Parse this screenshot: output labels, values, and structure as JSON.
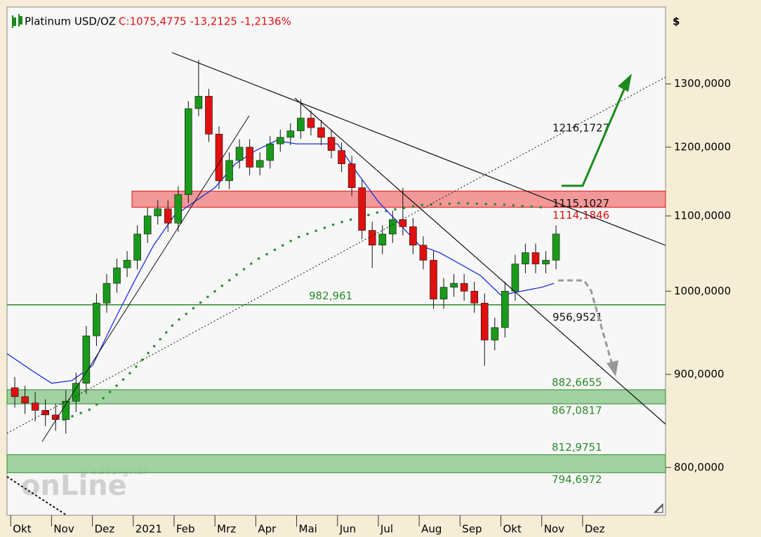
{
  "chart_data": {
    "type": "candlestick",
    "title": "Platinum USD/OZ",
    "quote": "C:1075,4775 -13,2125 -1,2136%",
    "y_label": "$",
    "watermark": "Tradesignal",
    "watermark_logo": "onLine",
    "log_scale": true,
    "xlim": [
      -0.09,
      16.03
    ],
    "ylim": [
      753,
      1433
    ],
    "yticks": [
      {
        "value": 800,
        "label": "800,0000"
      },
      {
        "value": 900,
        "label": "900,0000"
      },
      {
        "value": 1000,
        "label": "1000,0000"
      },
      {
        "value": 1100,
        "label": "1100,0000"
      },
      {
        "value": 1200,
        "label": "1200,0000"
      },
      {
        "value": 1300,
        "label": "1300,0000"
      }
    ],
    "xticks": [
      {
        "value": 0,
        "label": "Okt"
      },
      {
        "value": 1,
        "label": "Nov"
      },
      {
        "value": 2,
        "label": "Dez"
      },
      {
        "value": 3,
        "label": "2021"
      },
      {
        "value": 4,
        "label": "Feb"
      },
      {
        "value": 5,
        "label": "Mrz"
      },
      {
        "value": 6,
        "label": "Apr"
      },
      {
        "value": 7,
        "label": "Mai"
      },
      {
        "value": 8,
        "label": "Jun"
      },
      {
        "value": 9,
        "label": "Jul"
      },
      {
        "value": 10,
        "label": "Aug"
      },
      {
        "value": 11,
        "label": "Sep"
      },
      {
        "value": 12,
        "label": "Okt"
      },
      {
        "value": 13,
        "label": "Nov"
      },
      {
        "value": 14,
        "label": "Dez"
      }
    ],
    "up_color": "#1a9a1a",
    "down_color": "#e01010",
    "x": [
      0.1,
      0.35,
      0.6,
      0.85,
      1.1,
      1.35,
      1.6,
      1.85,
      2.1,
      2.35,
      2.6,
      2.85,
      3.1,
      3.35,
      3.6,
      3.85,
      4.1,
      4.35,
      4.6,
      4.85,
      5.1,
      5.35,
      5.6,
      5.85,
      6.1,
      6.35,
      6.6,
      6.85,
      7.1,
      7.35,
      7.6,
      7.85,
      8.1,
      8.35,
      8.6,
      8.85,
      9.1,
      9.35,
      9.6,
      9.85,
      10.1,
      10.35,
      10.6,
      10.85,
      11.1,
      11.35,
      11.6,
      11.85,
      12.1,
      12.35,
      12.6,
      12.85,
      13.1,
      13.35
    ],
    "open": [
      885,
      875,
      868,
      860,
      855,
      850,
      870,
      890,
      945,
      985,
      1010,
      1030,
      1040,
      1075,
      1100,
      1110,
      1090,
      1130,
      1260,
      1280,
      1220,
      1150,
      1180,
      1200,
      1170,
      1180,
      1205,
      1215,
      1225,
      1245,
      1230,
      1215,
      1195,
      1175,
      1140,
      1080,
      1060,
      1075,
      1095,
      1085,
      1060,
      1040,
      990,
      1005,
      1010,
      1000,
      985,
      940,
      955,
      1000,
      1035,
      1050,
      1035,
      1040
    ],
    "high": [
      897,
      887,
      880,
      872,
      867,
      882,
      902,
      957,
      997,
      1022,
      1042,
      1052,
      1087,
      1112,
      1122,
      1122,
      1142,
      1272,
      1340,
      1292,
      1232,
      1192,
      1212,
      1212,
      1192,
      1217,
      1227,
      1237,
      1275,
      1257,
      1242,
      1227,
      1207,
      1187,
      1152,
      1092,
      1087,
      1107,
      1140,
      1097,
      1072,
      1052,
      1017,
      1022,
      1022,
      1012,
      997,
      967,
      1012,
      1047,
      1062,
      1062,
      1052,
      1087
    ],
    "low": [
      863,
      856,
      848,
      843,
      838,
      835,
      858,
      878,
      933,
      973,
      998,
      1018,
      1028,
      1063,
      1088,
      1078,
      1078,
      1118,
      1248,
      1208,
      1138,
      1138,
      1168,
      1158,
      1158,
      1168,
      1193,
      1203,
      1213,
      1218,
      1203,
      1183,
      1163,
      1128,
      1068,
      1030,
      1048,
      1063,
      1073,
      1048,
      1028,
      978,
      978,
      993,
      988,
      973,
      910,
      928,
      943,
      988,
      1023,
      1023,
      1023,
      1028
    ],
    "close": [
      875,
      868,
      860,
      855,
      850,
      870,
      890,
      945,
      985,
      1010,
      1030,
      1040,
      1075,
      1100,
      1110,
      1090,
      1130,
      1260,
      1280,
      1220,
      1150,
      1180,
      1200,
      1170,
      1180,
      1205,
      1215,
      1225,
      1245,
      1230,
      1215,
      1195,
      1175,
      1140,
      1080,
      1060,
      1075,
      1095,
      1085,
      1060,
      1040,
      990,
      1005,
      1010,
      1000,
      985,
      940,
      955,
      1000,
      1035,
      1050,
      1035,
      1040,
      1075
    ],
    "moving_average": {
      "color": "#1c2ee0",
      "x": [
        -0.09,
        0.5,
        1,
        1.5,
        2,
        2.5,
        3,
        3.5,
        4,
        4.5,
        5,
        5.5,
        6,
        6.5,
        7,
        7.5,
        8,
        8.5,
        9,
        9.5,
        10,
        10.5,
        11,
        11.5,
        12,
        12.5,
        13,
        13.3
      ],
      "values": [
        924,
        905,
        890,
        893,
        910,
        960,
        1010,
        1060,
        1100,
        1120,
        1140,
        1175,
        1195,
        1210,
        1205,
        1205,
        1205,
        1160,
        1120,
        1090,
        1060,
        1050,
        1035,
        1020,
        995,
        1000,
        1005,
        1010
      ]
    },
    "sar": {
      "color": "#2a8a2a",
      "x": [
        1.3,
        2,
        3,
        4,
        5,
        6,
        7,
        8,
        9,
        10,
        11,
        12,
        13
      ],
      "values": [
        850,
        862,
        905,
        960,
        1000,
        1040,
        1070,
        1090,
        1105,
        1115,
        1118,
        1116,
        1112
      ]
    },
    "zones": [
      {
        "color": "#f08080",
        "start": 2.97,
        "range": [
          1135,
          1112
        ]
      },
      {
        "color": "#8cc88c",
        "start": -0.09,
        "range": [
          {
            "value": 882.6655,
            "label": "882,6655"
          },
          {
            "value": 867.0817,
            "label": "867,0817"
          }
        ]
      },
      {
        "color": "#8cc88c",
        "start": -0.09,
        "range": [
          {
            "value": 812.9751,
            "label": "812,9751"
          },
          {
            "value": 794.6972,
            "label": "794,6972"
          }
        ]
      }
    ],
    "levels": [
      {
        "value": 1216.1727,
        "label": "1216,1727",
        "color": "#111111"
      },
      {
        "value": 1115.1027,
        "label": "1115,1027",
        "color": "#111111"
      },
      {
        "value": 1114.1846,
        "label": "1114,1846",
        "color": "#e01010"
      },
      {
        "value": 982.961,
        "label": "982,961",
        "color": "#2a8a2a"
      },
      {
        "value": 956.9521,
        "label": "956,9521",
        "color": "#111111"
      }
    ]
  }
}
